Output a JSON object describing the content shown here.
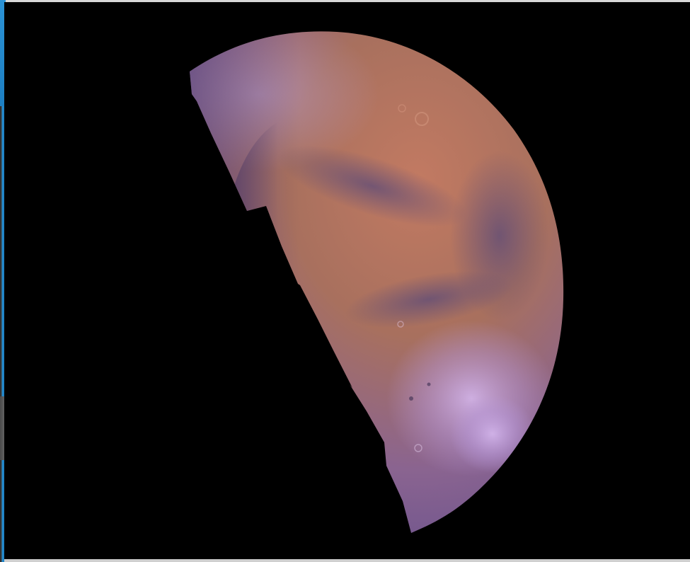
{
  "scene": {
    "subject": "mars-hemisphere-mosaic",
    "background_color": "#000000",
    "frame_color": "#d8d8d8",
    "colors": {
      "surface_rust": "#b0705e",
      "surface_violet": "#7a5fa8",
      "surface_shadow": "#4a3a6e",
      "dust_highlight": "#c8a8e0",
      "dark_albedo": "#5a4a78"
    }
  }
}
